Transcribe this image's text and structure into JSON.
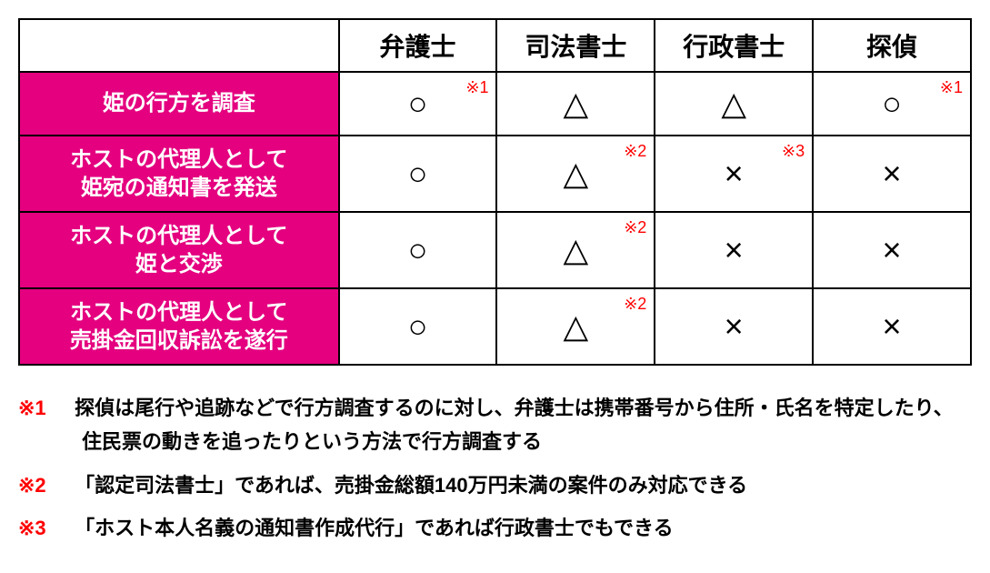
{
  "table": {
    "columns": [
      "弁護士",
      "司法書士",
      "行政書士",
      "探偵"
    ],
    "rows": [
      {
        "label": "姫の行方を調査",
        "tall": false,
        "cells": [
          {
            "symbol": "○",
            "note": "※1"
          },
          {
            "symbol": "△",
            "note": null
          },
          {
            "symbol": "△",
            "note": null
          },
          {
            "symbol": "○",
            "note": "※1"
          }
        ]
      },
      {
        "label": "ホストの代理人として\n姫宛の通知書を発送",
        "tall": true,
        "cells": [
          {
            "symbol": "○",
            "note": null
          },
          {
            "symbol": "△",
            "note": "※2"
          },
          {
            "symbol": "×",
            "note": "※3"
          },
          {
            "symbol": "×",
            "note": null
          }
        ]
      },
      {
        "label": "ホストの代理人として\n姫と交渉",
        "tall": true,
        "cells": [
          {
            "symbol": "○",
            "note": null
          },
          {
            "symbol": "△",
            "note": "※2"
          },
          {
            "symbol": "×",
            "note": null
          },
          {
            "symbol": "×",
            "note": null
          }
        ]
      },
      {
        "label": "ホストの代理人として\n売掛金回収訴訟を遂行",
        "tall": true,
        "cells": [
          {
            "symbol": "○",
            "note": null
          },
          {
            "symbol": "△",
            "note": "※2"
          },
          {
            "symbol": "×",
            "note": null
          },
          {
            "symbol": "×",
            "note": null
          }
        ]
      }
    ],
    "colors": {
      "row_header_bg": "#e4007f",
      "row_header_text": "#ffffff",
      "border": "#000000",
      "note_color": "#ff0000",
      "bg": "#ffffff"
    },
    "fontsize": {
      "col_header": 28,
      "row_header": 24,
      "symbol": 36,
      "note_ref": 18,
      "footnote": 22
    }
  },
  "footnotes": [
    {
      "marker": "※1",
      "text": "探偵は尾行や追跡などで行方調査するのに対し、弁護士は携帯番号から住所・氏名を特定したり、住民票の動きを追ったりという方法で行方調査する"
    },
    {
      "marker": "※2",
      "text": "「認定司法書士」であれば、売掛金総額140万円未満の案件のみ対応できる"
    },
    {
      "marker": "※3",
      "text": "「ホスト本人名義の通知書作成代行」であれば行政書士でもできる"
    }
  ]
}
